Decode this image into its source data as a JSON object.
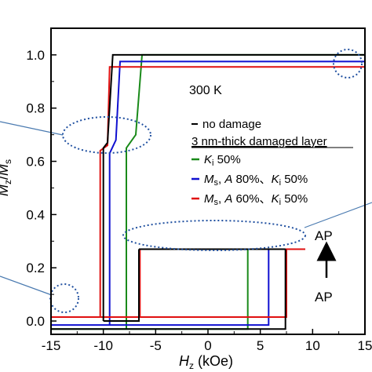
{
  "chart_data": {
    "type": "line",
    "xlabel_var": "H",
    "xlabel_sub": "z",
    "xlabel_unit": " (kOe)",
    "ylabel_num": "M",
    "ylabel_num_sub": "z",
    "ylabel_den": "M",
    "ylabel_den_sub": "s",
    "xlim": [
      -15,
      15
    ],
    "ylim": [
      -0.05,
      1.1
    ],
    "x_ticks": [
      -15,
      -10,
      -5,
      0,
      5,
      10,
      15
    ],
    "x_tick_labels": [
      "-15",
      "-10",
      "-5",
      "0",
      "5",
      "10",
      "15"
    ],
    "y_ticks": [
      0.0,
      0.2,
      0.4,
      0.6,
      0.8,
      1.0
    ],
    "y_tick_labels": [
      "0.0",
      "0.2",
      "0.4",
      "0.6",
      "0.8",
      "1.0"
    ],
    "temperature": "300 K",
    "legend_header": "3 nm-thick damaged layer",
    "legend": [
      {
        "color": "#000000",
        "label": "no damage"
      },
      {
        "color": "#1a8a1a",
        "label": "K_i 50%"
      },
      {
        "color": "#1010d0",
        "label": "M_s, A 80%、K_i 50%"
      },
      {
        "color": "#e01010",
        "label": "M_s, A 60%、K_i 50%"
      }
    ],
    "series": [
      {
        "name": "no damage",
        "color": "#000000",
        "major_loop": {
          "lower": [
            [
              -15,
              -0.03
            ],
            [
              7.4,
              -0.03
            ],
            [
              7.4,
              0.27
            ]
          ],
          "upper": [
            [
              -10.0,
              0.0
            ],
            [
              -10.0,
              0.65
            ],
            [
              -9.6,
              0.67
            ],
            [
              -9.1,
              1.0
            ],
            [
              15,
              1.0
            ]
          ],
          "minor_top": [
            [
              -6.6,
              0.27
            ],
            [
              7.4,
              0.27
            ]
          ],
          "minor_bottom": [
            [
              -10.0,
              0.0
            ],
            [
              -6.6,
              0.0
            ],
            [
              -6.6,
              0.27
            ]
          ]
        }
      },
      {
        "name": "K_i 50%",
        "color": "#1a8a1a",
        "major_loop": {
          "lower": [
            [
              -15,
              -0.03
            ],
            [
              3.8,
              -0.03
            ],
            [
              3.8,
              0.27
            ]
          ],
          "upper": [
            [
              -7.8,
              -0.03
            ],
            [
              -7.8,
              0.65
            ],
            [
              -6.9,
              0.7
            ],
            [
              -6.3,
              1.0
            ],
            [
              15,
              1.0
            ]
          ],
          "minor_top": [
            [
              -2.6,
              0.27
            ],
            [
              3.8,
              0.27
            ]
          ],
          "minor_bottom": [
            [
              -2.6,
              0.27
            ],
            [
              -2.6,
              0.27
            ]
          ]
        }
      },
      {
        "name": "M_s, A 80%、K_i 50%",
        "color": "#1010d0",
        "major_loop": {
          "lower": [
            [
              -15,
              -0.015
            ],
            [
              5.8,
              -0.015
            ],
            [
              5.8,
              0.27
            ]
          ],
          "upper": [
            [
              -9.4,
              -0.015
            ],
            [
              -9.4,
              0.63
            ],
            [
              -8.8,
              0.68
            ],
            [
              -8.4,
              0.975
            ],
            [
              15,
              0.975
            ]
          ],
          "minor_top": [
            [
              -4.7,
              0.27
            ],
            [
              5.8,
              0.27
            ]
          ],
          "minor_bottom": [
            [
              -4.7,
              0.27
            ],
            [
              -4.7,
              0.27
            ]
          ]
        }
      },
      {
        "name": "M_s, A 60%、K_i 50%",
        "color": "#e01010",
        "major_loop": {
          "lower": [
            [
              -15,
              0.015
            ],
            [
              7.5,
              0.015
            ],
            [
              7.5,
              0.27
            ]
          ],
          "upper": [
            [
              -10.3,
              0.015
            ],
            [
              -10.3,
              0.64
            ],
            [
              -9.6,
              0.66
            ],
            [
              -9.4,
              0.955
            ],
            [
              15,
              0.955
            ]
          ],
          "minor_top": [
            [
              -6.5,
              0.27
            ],
            [
              9.3,
              0.27
            ]
          ],
          "minor_bottom": [
            [
              -6.5,
              0.015
            ],
            [
              -6.5,
              0.27
            ]
          ]
        }
      }
    ],
    "annotations": {
      "ap_top": "AP",
      "ap_bottom": "AP"
    }
  }
}
